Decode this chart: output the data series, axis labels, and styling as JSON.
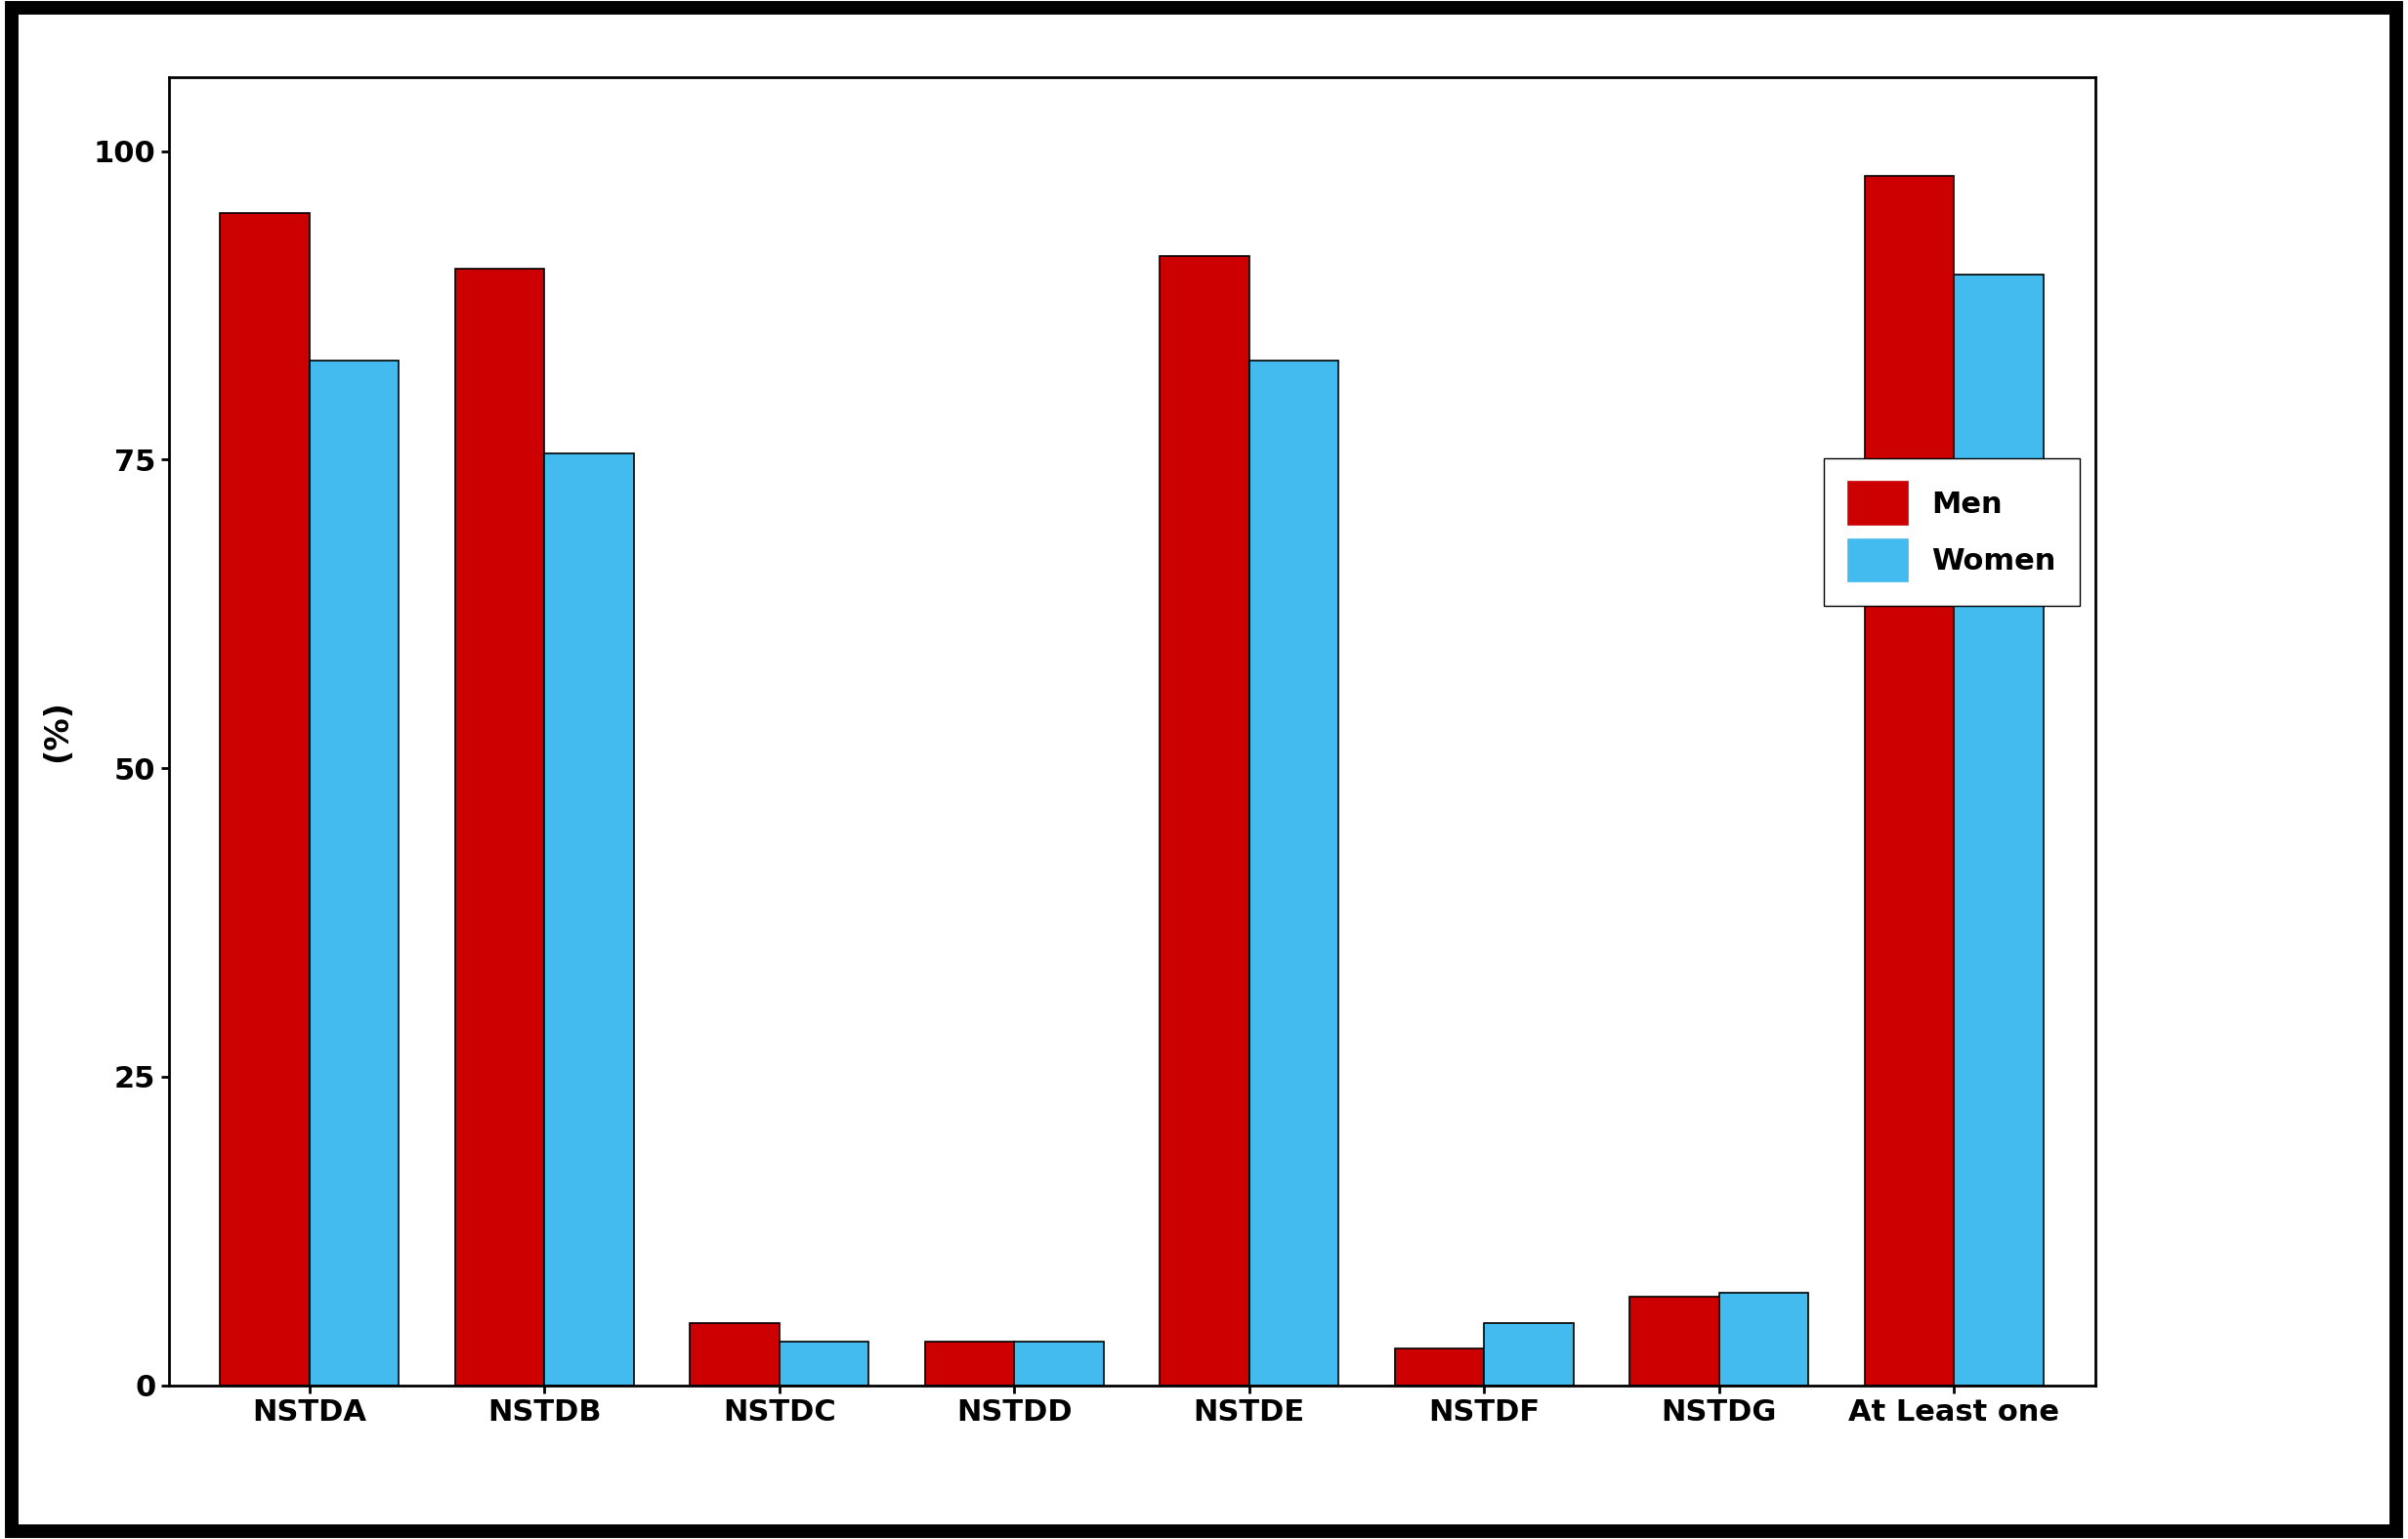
{
  "categories": [
    "NSTDA",
    "NSTDB",
    "NSTDC",
    "NSTDD",
    "NSTDE",
    "NSTDF",
    "NSTDG",
    "At Least one"
  ],
  "men_values": [
    95.0,
    90.5,
    5.0,
    3.5,
    91.5,
    3.0,
    7.2,
    98.0
  ],
  "women_values": [
    83.0,
    75.5,
    3.5,
    3.5,
    83.0,
    5.0,
    7.5,
    90.0
  ],
  "men_color": "#CC0000",
  "women_color": "#44BBEE",
  "ylabel": "(%)",
  "ylim": [
    0,
    106
  ],
  "yticks": [
    0,
    25,
    50,
    75,
    100
  ],
  "bar_width": 0.38,
  "background_color": "#FFFFFF",
  "legend_labels": [
    "Men",
    "Women"
  ],
  "tick_fontsize": 22,
  "label_fontsize": 24,
  "legend_fontsize": 22,
  "border_linewidth": 8,
  "outer_border_linewidth": 10
}
